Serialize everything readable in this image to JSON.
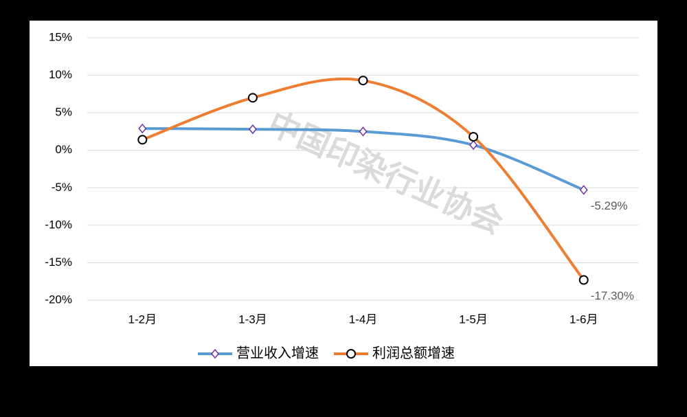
{
  "chart_data": {
    "type": "line",
    "categories": [
      "1-2月",
      "1-3月",
      "1-4月",
      "1-5月",
      "1-6月"
    ],
    "series": [
      {
        "name": "营业收入增速",
        "color": "#5B9BD5",
        "marker": "diamond",
        "marker_color": "#7030A0",
        "values": [
          2.9,
          2.8,
          2.5,
          0.7,
          -5.29
        ],
        "value_labels": [
          null,
          null,
          null,
          null,
          "-5.29%"
        ]
      },
      {
        "name": "利润总额增速",
        "color": "#ED7D31",
        "marker": "circle",
        "marker_color": "#000000",
        "values": [
          1.4,
          7.0,
          9.3,
          1.8,
          -17.3
        ],
        "value_labels": [
          null,
          null,
          null,
          null,
          "-17.30%"
        ]
      }
    ],
    "ylim": [
      -20,
      15
    ],
    "yticks": [
      {
        "value": 15,
        "label": "15%"
      },
      {
        "value": 10,
        "label": "10%"
      },
      {
        "value": 5,
        "label": "5%"
      },
      {
        "value": 0,
        "label": "0%"
      },
      {
        "value": -5,
        "label": "-5%"
      },
      {
        "value": -10,
        "label": "-10%"
      },
      {
        "value": -15,
        "label": "-15%"
      },
      {
        "value": -20,
        "label": "-20%"
      }
    ],
    "grid": true,
    "smooth": true,
    "legend": "bottom",
    "watermark": "中国印染行业协会"
  }
}
